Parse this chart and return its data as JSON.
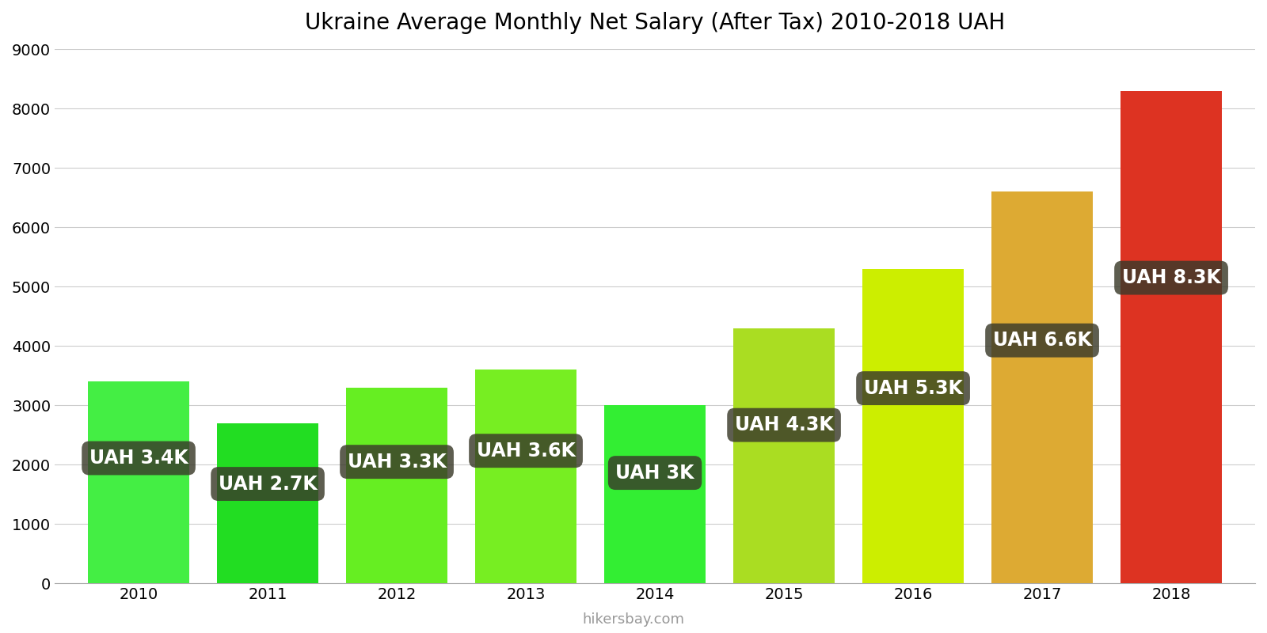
{
  "title": "Ukraine Average Monthly Net Salary (After Tax) 2010-2018 UAH",
  "years": [
    2010,
    2011,
    2012,
    2013,
    2014,
    2015,
    2016,
    2017,
    2018
  ],
  "values": [
    3400,
    2700,
    3300,
    3600,
    3000,
    4300,
    5300,
    6600,
    8300
  ],
  "bar_colors": [
    "#44ee44",
    "#22dd22",
    "#66ee22",
    "#77ee22",
    "#33ee33",
    "#aadd22",
    "#ccee00",
    "#ddaa33",
    "#dd3322"
  ],
  "labels": [
    "UAH 3.4K",
    "UAH 2.7K",
    "UAH 3.3K",
    "UAH 3.6K",
    "UAH 3K",
    "UAH 4.3K",
    "UAH 5.3K",
    "UAH 6.6K",
    "UAH 8.3K"
  ],
  "label_text_color": "#ffffff",
  "ylim": [
    0,
    9000
  ],
  "yticks": [
    0,
    1000,
    2000,
    3000,
    4000,
    5000,
    6000,
    7000,
    8000,
    9000
  ],
  "watermark": "hikersbay.com",
  "background_color": "#ffffff",
  "title_fontsize": 20,
  "tick_fontsize": 14,
  "label_fontsize": 17,
  "bar_width": 0.78
}
